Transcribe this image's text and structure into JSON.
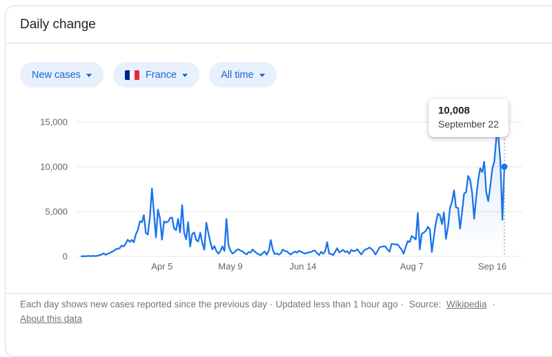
{
  "header": {
    "title": "Daily change"
  },
  "chips": [
    {
      "label": "New cases",
      "type": "metric",
      "icon": "chevron-down-icon"
    },
    {
      "label": "France",
      "type": "region",
      "flag": true,
      "icon": "chevron-down-icon"
    },
    {
      "label": "All time",
      "type": "time-range",
      "icon": "chevron-down-icon"
    }
  ],
  "theme": {
    "accent": "#1a73e8",
    "chip_background": "#e8f0fe",
    "chip_text": "#1967d2",
    "line_color": "#1a73e8",
    "area_top_opacity": 0.14,
    "grid_color": "#e3e5e8",
    "axis_label_color": "#5f6368",
    "title_color": "#202124",
    "footer_color": "#70757a",
    "divider_color": "#dadce0",
    "guide_line_color": "#80868b",
    "flag_colors": [
      "#002395",
      "#ffffff",
      "#ED2939"
    ]
  },
  "chart_data": {
    "type": "line",
    "series_name": "New cases",
    "region": "France",
    "range": "All time",
    "start_date": "2020-02-25",
    "end_date": "2020-09-22",
    "interval": "day",
    "ylim": [
      0,
      16500
    ],
    "grid": true,
    "y_ticks": [
      {
        "value": 0,
        "label": "0"
      },
      {
        "value": 5000,
        "label": "5,000"
      },
      {
        "value": 10000,
        "label": "10,000"
      },
      {
        "value": 15000,
        "label": "15,000"
      }
    ],
    "x_ticks": [
      {
        "index": 40,
        "label": "Apr 5"
      },
      {
        "index": 74,
        "label": "May 9"
      },
      {
        "index": 110,
        "label": "Jun 14"
      },
      {
        "index": 164,
        "label": "Aug 7"
      },
      {
        "index": 204,
        "label": "Sep 16"
      }
    ],
    "values": [
      4,
      20,
      18,
      38,
      43,
      30,
      61,
      21,
      73,
      138,
      190,
      336,
      177,
      286,
      372,
      497,
      595,
      785,
      838,
      924,
      1210,
      1097,
      1404,
      1861,
      1617,
      1847,
      1559,
      2448,
      2931,
      3922,
      3809,
      4611,
      2599,
      2444,
      4376,
      7578,
      4861,
      2116,
      5233,
      4267,
      1873,
      3912,
      3777,
      3881,
      4286,
      4342,
      3114,
      2937,
      4188,
      2673,
      5733,
      2641,
      1909,
      3824,
      1101,
      2489,
      2667,
      1827,
      1653,
      2644,
      1537,
      742,
      3764,
      2638,
      1607,
      758,
      1162,
      601,
      297,
      576,
      1104,
      600,
      4183,
      1288,
      642,
      312,
      456,
      708,
      801,
      622,
      563,
      358,
      212,
      492,
      418,
      766,
      553,
      351,
      250,
      115,
      358,
      541,
      191,
      597,
      1828,
      737,
      257,
      338,
      193,
      352,
      767,
      588,
      579,
      343,
      211,
      403,
      545,
      425,
      612,
      526,
      407,
      307,
      389,
      458,
      467,
      621,
      641,
      373,
      138,
      517,
      293,
      562,
      1588,
      305,
      267,
      138,
      526,
      918,
      441,
      582,
      722,
      475,
      580,
      296,
      725,
      583,
      612,
      795,
      475,
      211,
      585,
      772,
      836,
      996,
      827,
      584,
      208,
      584,
      998,
      1062,
      1130,
      1103,
      752,
      522,
      1392,
      1377,
      1302,
      1346,
      1033,
      752,
      296,
      1039,
      1695,
      1604,
      2288,
      2084,
      1885,
      4854,
      785,
      2524,
      2669,
      2846,
      3310,
      3015,
      493,
      2238,
      3776,
      4771,
      4586,
      3602,
      4897,
      1955,
      3304,
      5429,
      6111,
      7379,
      5453,
      5413,
      3082,
      4982,
      7017,
      7157,
      8975,
      8550,
      7071,
      4203,
      6544,
      8577,
      9843,
      9406,
      10561,
      7183,
      6158,
      7852,
      9784,
      10593,
      13215,
      13498,
      10569,
      4070,
      10008
    ],
    "highlight": {
      "index": 210,
      "value": 10008,
      "value_label": "10,008",
      "date_label": "September 22"
    }
  },
  "footer": {
    "text": "Each day shows new cases reported since the previous day",
    "separator": "·",
    "updated": "Updated less than 1 hour ago",
    "source_label": "Source:",
    "source_link": "Wikipedia",
    "about_link": "About this data"
  }
}
